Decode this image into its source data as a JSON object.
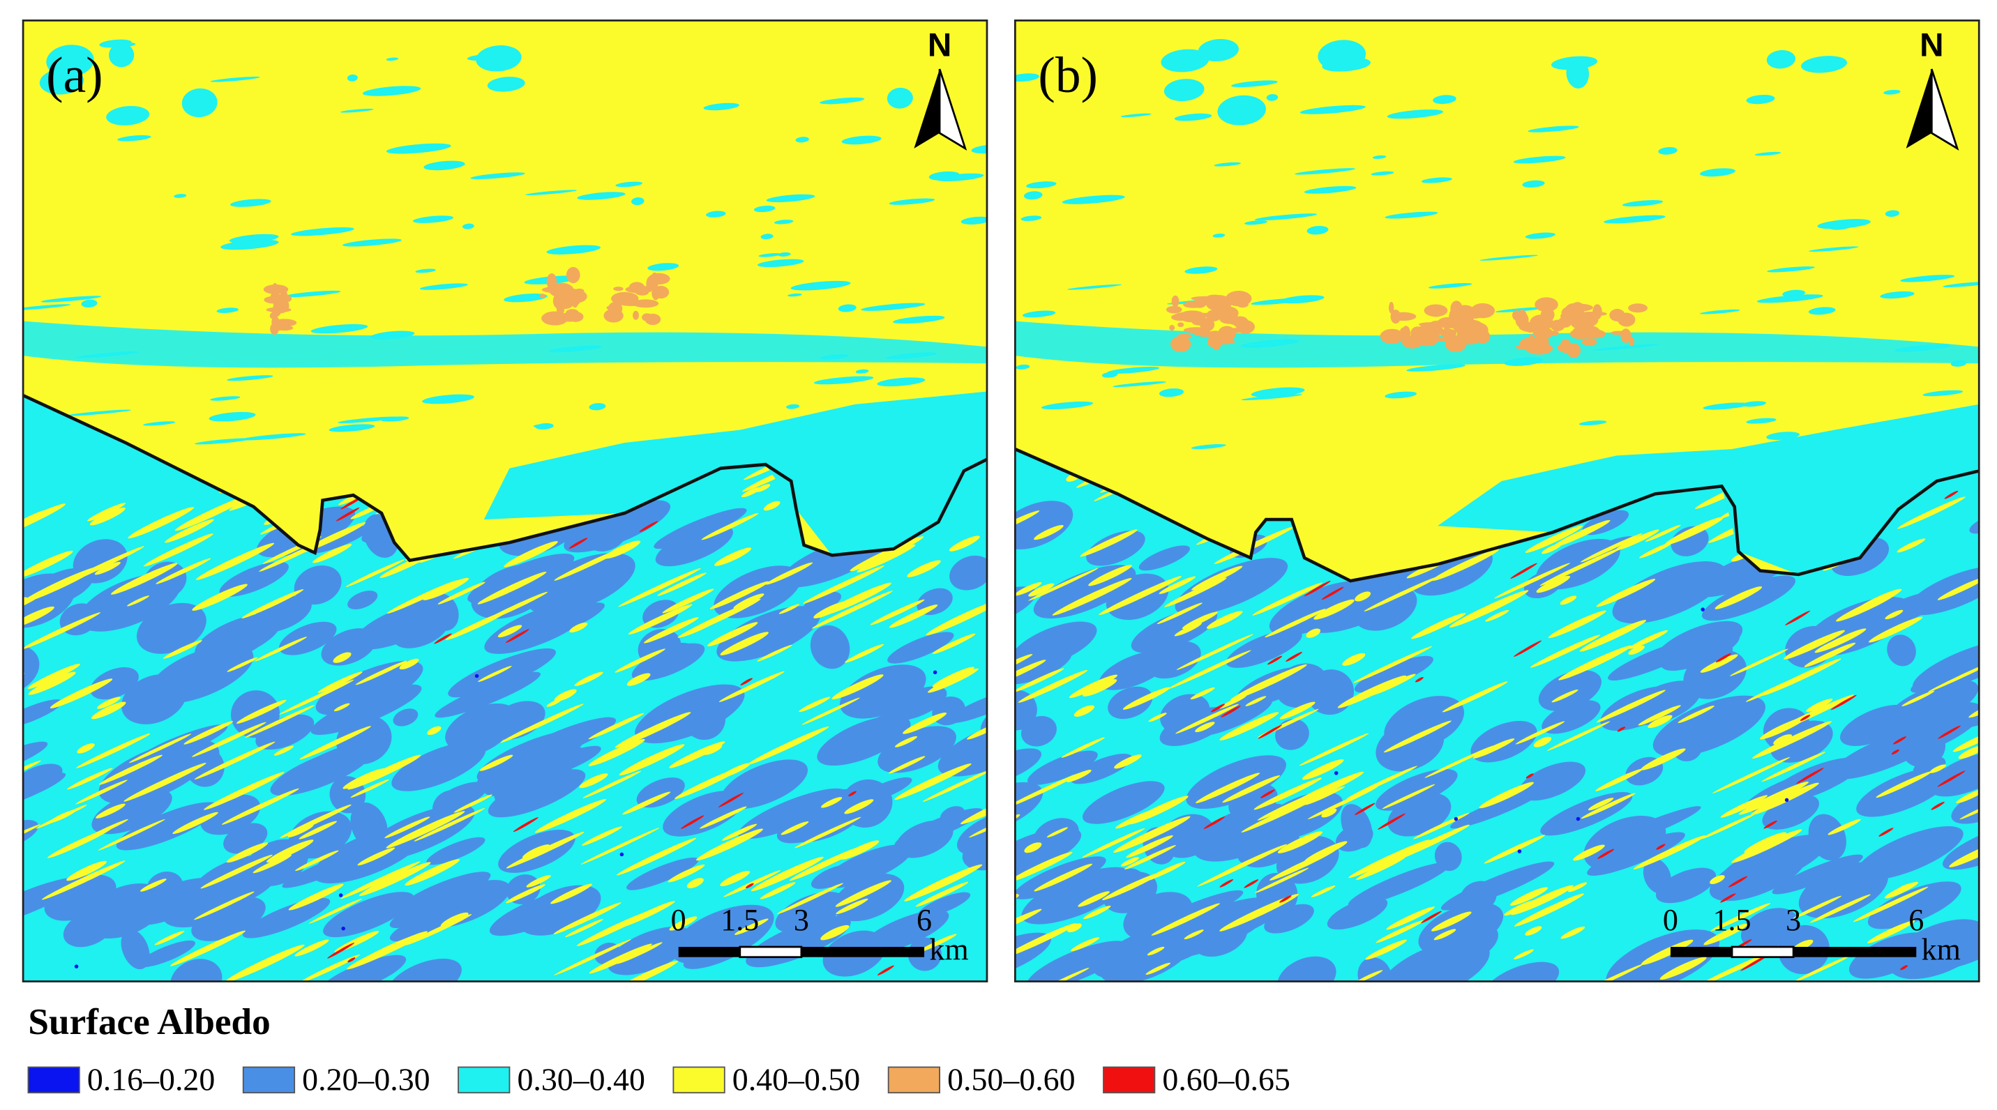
{
  "panels": [
    {
      "label": "(a)",
      "north": "N",
      "scale_labels": [
        "0",
        "1.5",
        "3",
        "6"
      ],
      "scale_unit": "km"
    },
    {
      "label": "(b)",
      "north": "N",
      "scale_labels": [
        "0",
        "1.5",
        "3",
        "6"
      ],
      "scale_unit": "km"
    }
  ],
  "legend": {
    "title": "Surface Albedo",
    "items": [
      {
        "label": "0.16–0.20",
        "color": "#0a14f0"
      },
      {
        "label": "0.20–0.30",
        "color": "#4a8fe6"
      },
      {
        "label": "0.30–0.40",
        "color": "#1ff0f0"
      },
      {
        "label": "0.40–0.50",
        "color": "#fbfb2c"
      },
      {
        "label": "0.50–0.60",
        "color": "#f2a95c"
      },
      {
        "label": "0.60–0.65",
        "color": "#f01010"
      }
    ]
  }
}
